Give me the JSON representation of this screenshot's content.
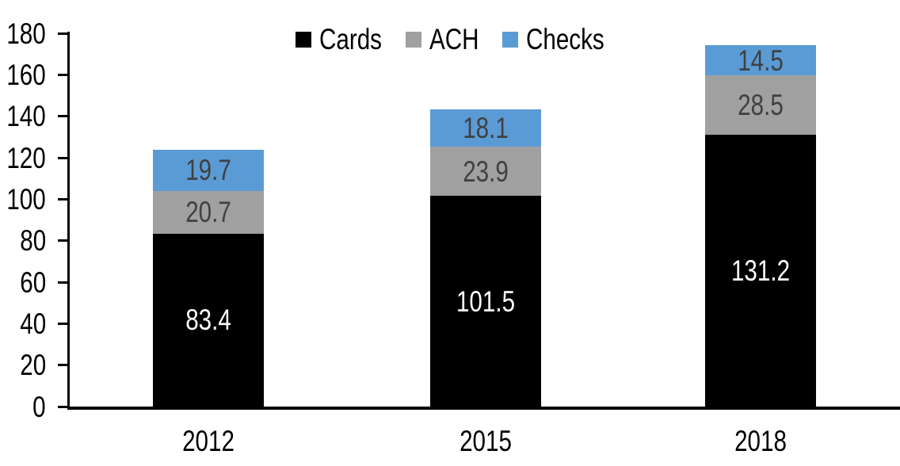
{
  "chart_data": {
    "type": "bar",
    "stacked": true,
    "title": "",
    "xlabel": "",
    "ylabel": "",
    "categories": [
      "2012",
      "2015",
      "2018"
    ],
    "series": [
      {
        "name": "Cards",
        "color": "#000000",
        "label_color": "#FFFFFF",
        "values": [
          83.4,
          101.5,
          131.2
        ]
      },
      {
        "name": "ACH",
        "color": "#A0A0A0",
        "label_color": "#404040",
        "values": [
          20.7,
          23.9,
          28.5
        ]
      },
      {
        "name": "Checks",
        "color": "#5B9BD5",
        "label_color": "#404040",
        "values": [
          19.7,
          18.1,
          14.5
        ]
      }
    ],
    "ylim": [
      0,
      180
    ],
    "yticks": [
      0,
      20,
      40,
      60,
      80,
      100,
      120,
      140,
      160,
      180
    ],
    "grid": false,
    "legend_position": "top-center",
    "axis_color": "#000000",
    "background_color": "#FFFFFF"
  }
}
